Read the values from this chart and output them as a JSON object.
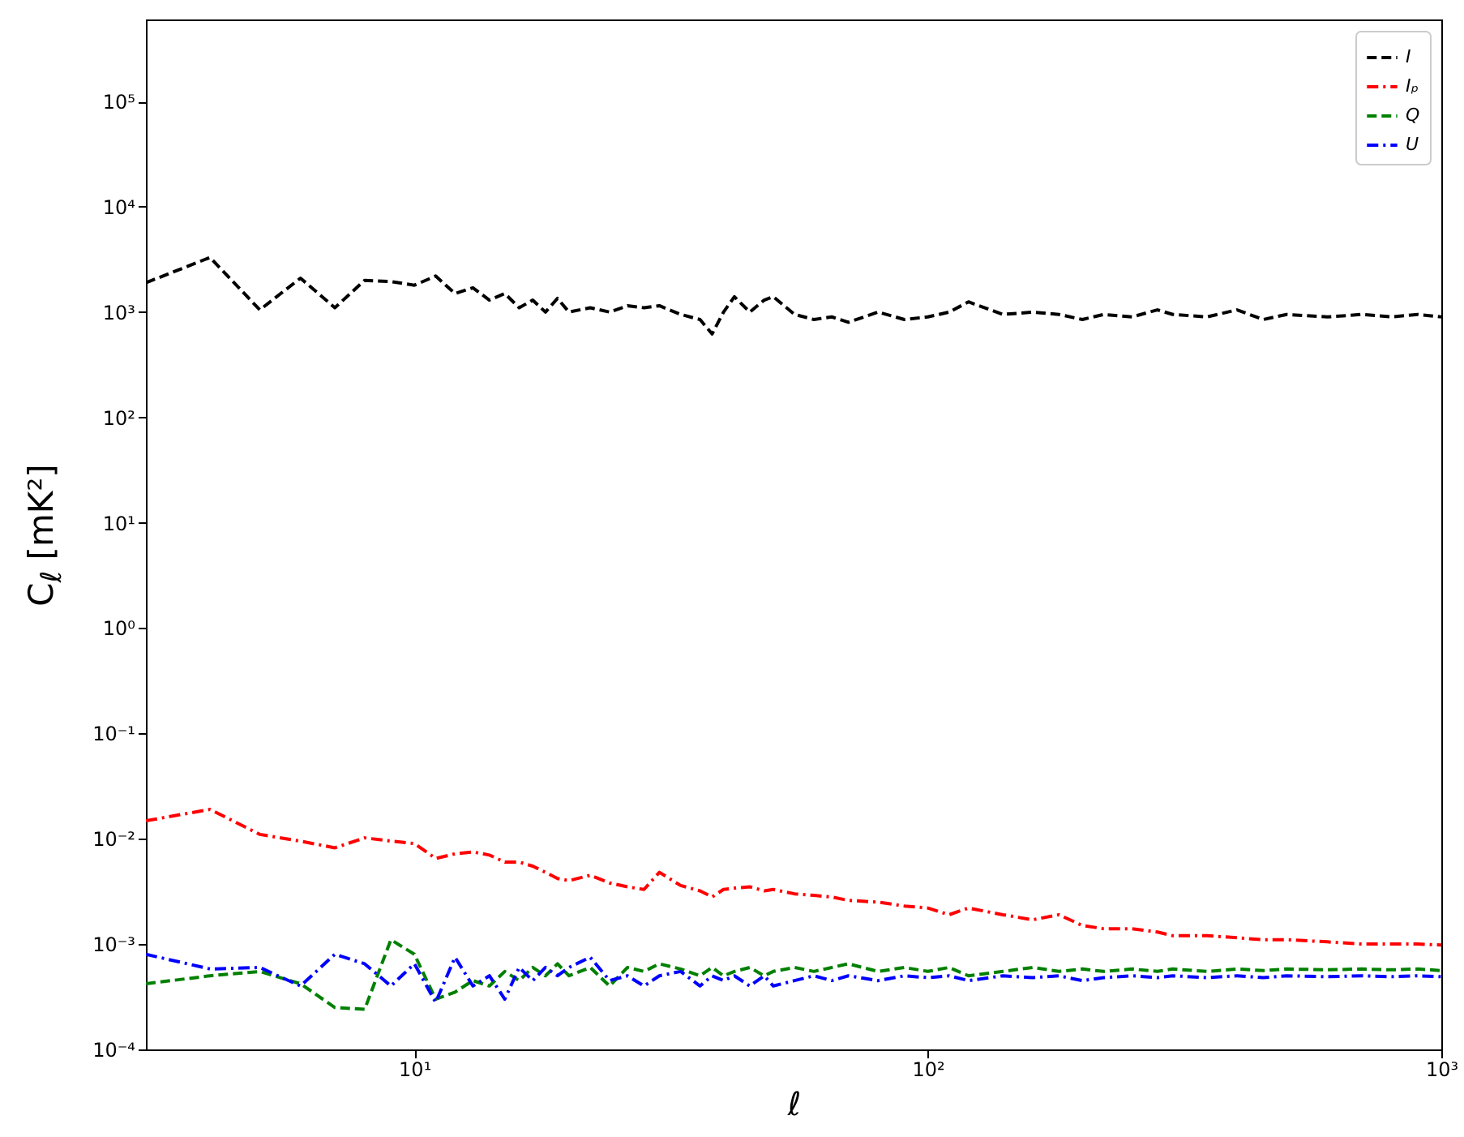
{
  "chart_data": {
    "type": "line",
    "xlabel": "ℓ",
    "ylabel": "C$_{ℓ}$ [mK²]",
    "log": "xy",
    "grid": false,
    "legend": "top right",
    "marker": "none",
    "xlim": [
      3,
      1000
    ],
    "xticks": [
      {
        "value": 10,
        "label": "10¹"
      },
      {
        "value": 100,
        "label": "10²"
      },
      {
        "value": 1000,
        "label": "10³"
      }
    ],
    "ylim": [
      0.0001,
      600000
    ],
    "yticks": [
      {
        "value": 0.0001,
        "label": "10⁻⁴"
      },
      {
        "value": 0.001,
        "label": "10⁻³"
      },
      {
        "value": 0.01,
        "label": "10⁻²"
      },
      {
        "value": 0.1,
        "label": "10⁻¹"
      },
      {
        "value": 1,
        "label": "10⁰"
      },
      {
        "value": 10,
        "label": "10¹"
      },
      {
        "value": 100,
        "label": "10²"
      },
      {
        "value": 1000,
        "label": "10³"
      },
      {
        "value": 10000,
        "label": "10⁴"
      },
      {
        "value": 100000,
        "label": "10⁵"
      }
    ],
    "x": [
      3,
      4,
      5,
      6,
      7,
      8,
      9,
      10,
      11,
      12,
      13,
      14,
      15,
      16,
      17,
      18,
      19,
      20,
      22,
      24,
      26,
      28,
      30,
      33,
      36,
      38,
      40,
      42,
      45,
      48,
      50,
      55,
      60,
      65,
      70,
      80,
      90,
      100,
      110,
      120,
      140,
      160,
      180,
      200,
      220,
      250,
      280,
      300,
      350,
      400,
      450,
      500,
      600,
      700,
      800,
      900,
      1000
    ],
    "series": [
      {
        "name": "I",
        "color": "#000000",
        "line_style": "dashed",
        "values": [
          1900,
          3300,
          1050,
          2100,
          1100,
          2000,
          1950,
          1800,
          2200,
          1500,
          1700,
          1300,
          1500,
          1100,
          1300,
          1000,
          1350,
          1000,
          1100,
          1000,
          1150,
          1100,
          1150,
          950,
          850,
          620,
          1000,
          1400,
          1000,
          1300,
          1400,
          950,
          850,
          900,
          800,
          1000,
          850,
          900,
          1000,
          1250,
          950,
          1000,
          950,
          850,
          950,
          900,
          1050,
          950,
          900,
          1050,
          850,
          950,
          900,
          950,
          900,
          950,
          900
        ]
      },
      {
        "name": "Iₚ",
        "color": "#ff0000",
        "line_style": "dashdot",
        "values": [
          0.0148,
          0.019,
          0.011,
          0.0095,
          0.0082,
          0.0102,
          0.0095,
          0.009,
          0.0065,
          0.0072,
          0.0075,
          0.007,
          0.006,
          0.006,
          0.0055,
          0.0048,
          0.0042,
          0.004,
          0.0045,
          0.0038,
          0.0035,
          0.0033,
          0.0048,
          0.0036,
          0.0032,
          0.0028,
          0.0033,
          0.0034,
          0.0035,
          0.0032,
          0.0033,
          0.003,
          0.0029,
          0.0028,
          0.0026,
          0.0025,
          0.0023,
          0.0022,
          0.0019,
          0.0022,
          0.0019,
          0.0017,
          0.0019,
          0.0015,
          0.0014,
          0.0014,
          0.0013,
          0.0012,
          0.0012,
          0.00115,
          0.0011,
          0.0011,
          0.00105,
          0.001,
          0.001,
          0.001,
          0.00098
        ]
      },
      {
        "name": "Q",
        "color": "#008000",
        "line_style": "dashed",
        "values": [
          0.00042,
          0.0005,
          0.00055,
          0.00042,
          0.00025,
          0.00024,
          0.0011,
          0.0008,
          0.0003,
          0.00035,
          0.00045,
          0.0004,
          0.00055,
          0.00045,
          0.0006,
          0.0005,
          0.00065,
          0.0005,
          0.0006,
          0.0004,
          0.0006,
          0.00055,
          0.00065,
          0.00058,
          0.0005,
          0.0006,
          0.0005,
          0.00055,
          0.0006,
          0.0005,
          0.00055,
          0.0006,
          0.00055,
          0.0006,
          0.00065,
          0.00055,
          0.0006,
          0.00055,
          0.0006,
          0.0005,
          0.00055,
          0.0006,
          0.00055,
          0.00058,
          0.00055,
          0.00058,
          0.00055,
          0.00058,
          0.00055,
          0.00058,
          0.00056,
          0.00058,
          0.00057,
          0.00058,
          0.00057,
          0.00058,
          0.00056
        ]
      },
      {
        "name": "U",
        "color": "#0000ff",
        "line_style": "dashdot",
        "values": [
          0.0008,
          0.00058,
          0.0006,
          0.0004,
          0.0008,
          0.00065,
          0.0004,
          0.00065,
          0.00028,
          0.00075,
          0.0004,
          0.0005,
          0.0003,
          0.0006,
          0.00045,
          0.0006,
          0.0005,
          0.0006,
          0.00075,
          0.00045,
          0.0005,
          0.0004,
          0.0005,
          0.00055,
          0.0004,
          0.0005,
          0.00045,
          0.0005,
          0.0004,
          0.0005,
          0.0004,
          0.00045,
          0.0005,
          0.00045,
          0.0005,
          0.00045,
          0.0005,
          0.00048,
          0.0005,
          0.00045,
          0.0005,
          0.00048,
          0.0005,
          0.00045,
          0.00048,
          0.0005,
          0.00048,
          0.0005,
          0.00048,
          0.0005,
          0.00048,
          0.0005,
          0.00049,
          0.0005,
          0.00049,
          0.0005,
          0.00049
        ]
      }
    ]
  }
}
